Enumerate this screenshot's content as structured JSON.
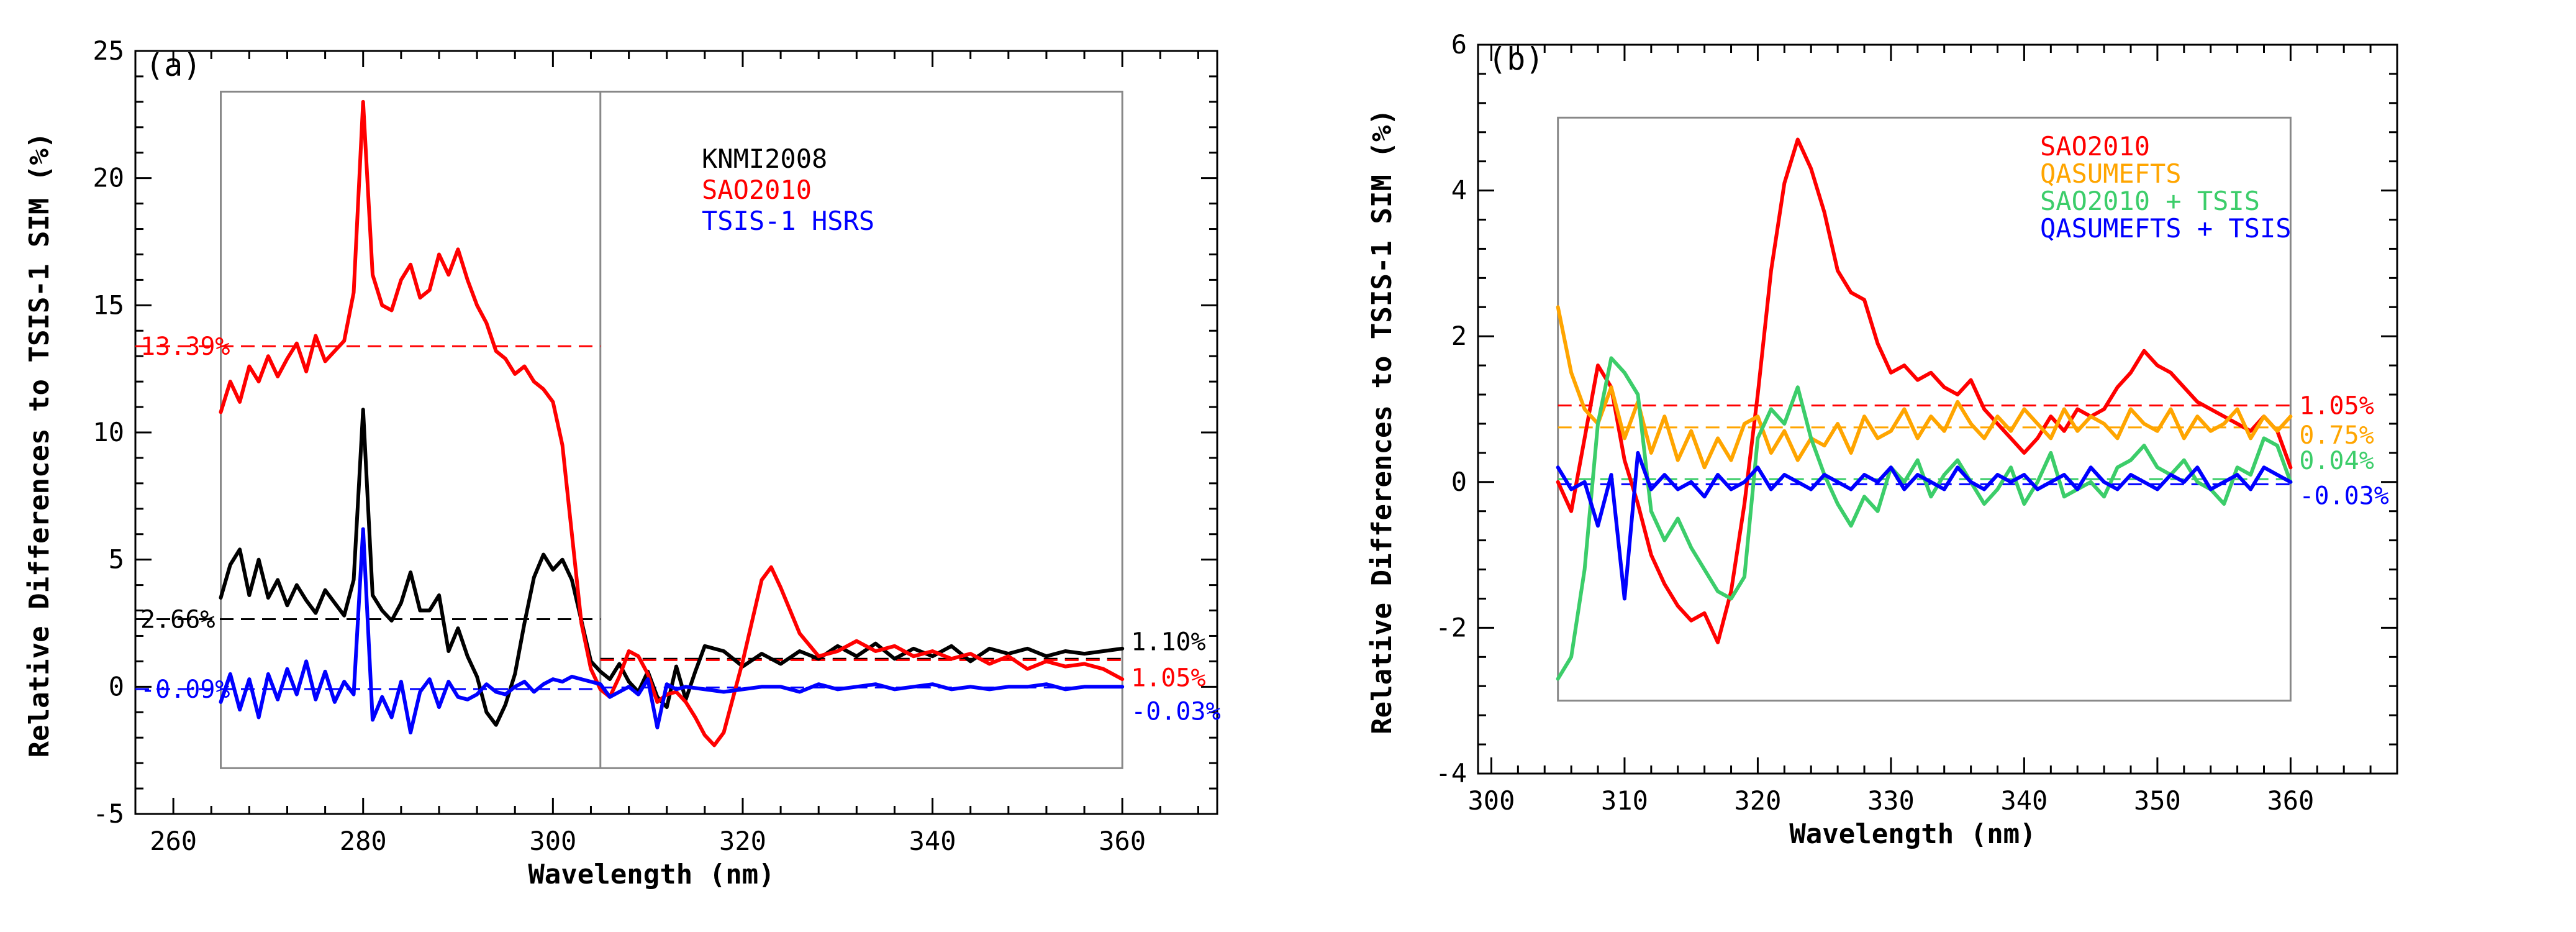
{
  "figure": "Two-panel spectral comparison of relative differences to TSIS-1 SIM",
  "chart_data": [
    {
      "type": "line",
      "panel_label": "(a)",
      "xlabel": "Wavelength (nm)",
      "ylabel": "Relative Differences to TSIS-1 SIM (%)",
      "xlim": [
        256,
        370
      ],
      "ylim": [
        -5,
        25
      ],
      "xticks": [
        260,
        280,
        300,
        320,
        340,
        360
      ],
      "yticks": [
        -5,
        0,
        5,
        10,
        15,
        20,
        25
      ],
      "grid": false,
      "legend_position": "top-center",
      "series": [
        {
          "name": "KNMI2008",
          "color": "#000000",
          "x": [
            265,
            266,
            267,
            268,
            269,
            270,
            271,
            272,
            273,
            274,
            275,
            276,
            277,
            278,
            279,
            280,
            281,
            282,
            283,
            284,
            285,
            286,
            287,
            288,
            289,
            290,
            291,
            292,
            293,
            294,
            295,
            296,
            297,
            298,
            299,
            300,
            301,
            302,
            303,
            304,
            305,
            306,
            307,
            308,
            309,
            310,
            311,
            312,
            313,
            314,
            315,
            316,
            318,
            320,
            322,
            324,
            326,
            328,
            330,
            332,
            334,
            336,
            338,
            340,
            342,
            344,
            346,
            348,
            350,
            352,
            354,
            356,
            358,
            360
          ],
          "y": [
            3.5,
            4.8,
            5.4,
            3.6,
            5.0,
            3.5,
            4.2,
            3.2,
            4.0,
            3.4,
            2.9,
            3.8,
            3.3,
            2.8,
            4.2,
            10.9,
            3.6,
            3.0,
            2.6,
            3.3,
            4.5,
            3.0,
            3.0,
            3.6,
            1.4,
            2.3,
            1.2,
            0.4,
            -1.0,
            -1.5,
            -0.7,
            0.5,
            2.5,
            4.3,
            5.2,
            4.6,
            5.0,
            4.2,
            2.6,
            1.0,
            0.6,
            0.3,
            0.9,
            0.2,
            -0.2,
            0.6,
            -0.4,
            -0.8,
            0.8,
            -0.5,
            0.6,
            1.6,
            1.4,
            0.8,
            1.3,
            0.9,
            1.4,
            1.1,
            1.6,
            1.2,
            1.7,
            1.1,
            1.5,
            1.2,
            1.6,
            1.0,
            1.5,
            1.3,
            1.5,
            1.2,
            1.4,
            1.3,
            1.4,
            1.5
          ]
        },
        {
          "name": "SAO2010",
          "color": "#ff0000",
          "x": [
            265,
            266,
            267,
            268,
            269,
            270,
            271,
            272,
            273,
            274,
            275,
            276,
            277,
            278,
            279,
            280,
            281,
            282,
            283,
            284,
            285,
            286,
            287,
            288,
            289,
            290,
            291,
            292,
            293,
            294,
            295,
            296,
            297,
            298,
            299,
            300,
            301,
            302,
            303,
            304,
            305,
            306,
            307,
            308,
            309,
            310,
            311,
            312,
            313,
            314,
            315,
            316,
            317,
            318,
            320,
            322,
            323,
            324,
            326,
            328,
            330,
            332,
            334,
            336,
            338,
            340,
            342,
            344,
            346,
            348,
            350,
            352,
            354,
            356,
            358,
            360
          ],
          "y": [
            10.8,
            12.0,
            11.2,
            12.6,
            12.0,
            13.0,
            12.2,
            12.9,
            13.5,
            12.4,
            13.8,
            12.8,
            13.2,
            13.6,
            15.5,
            23.0,
            16.2,
            15.0,
            14.8,
            16.0,
            16.6,
            15.3,
            15.6,
            17.0,
            16.2,
            17.2,
            16.0,
            15.0,
            14.3,
            13.2,
            12.9,
            12.3,
            12.6,
            12.0,
            11.7,
            11.2,
            9.5,
            6.0,
            2.5,
            0.7,
            -0.1,
            -0.4,
            0.4,
            1.4,
            1.2,
            0.5,
            -0.6,
            -0.3,
            -0.2,
            -0.6,
            -1.2,
            -1.9,
            -2.3,
            -1.8,
            1.0,
            4.2,
            4.7,
            3.9,
            2.1,
            1.2,
            1.4,
            1.8,
            1.4,
            1.6,
            1.2,
            1.4,
            1.1,
            1.3,
            0.9,
            1.2,
            0.7,
            1.0,
            0.8,
            0.9,
            0.7,
            0.3
          ]
        },
        {
          "name": "TSIS-1 HSRS",
          "color": "#0000ff",
          "x": [
            265,
            266,
            267,
            268,
            269,
            270,
            271,
            272,
            273,
            274,
            275,
            276,
            277,
            278,
            279,
            280,
            281,
            282,
            283,
            284,
            285,
            286,
            287,
            288,
            289,
            290,
            291,
            292,
            293,
            294,
            295,
            296,
            297,
            298,
            299,
            300,
            301,
            302,
            303,
            304,
            305,
            306,
            307,
            308,
            309,
            310,
            311,
            312,
            313,
            314,
            316,
            318,
            320,
            322,
            324,
            326,
            328,
            330,
            332,
            334,
            336,
            338,
            340,
            342,
            344,
            346,
            348,
            350,
            352,
            354,
            356,
            358,
            360
          ],
          "y": [
            -0.6,
            0.5,
            -0.9,
            0.3,
            -1.2,
            0.5,
            -0.5,
            0.7,
            -0.3,
            1.0,
            -0.5,
            0.6,
            -0.6,
            0.2,
            -0.3,
            6.2,
            -1.3,
            -0.4,
            -1.2,
            0.2,
            -1.8,
            -0.2,
            0.3,
            -0.8,
            0.2,
            -0.4,
            -0.5,
            -0.3,
            0.1,
            -0.2,
            -0.3,
            0.0,
            0.2,
            -0.2,
            0.1,
            0.3,
            0.2,
            0.4,
            0.3,
            0.2,
            0.1,
            -0.4,
            -0.2,
            0.0,
            -0.3,
            0.3,
            -1.6,
            0.1,
            -0.1,
            0.0,
            -0.1,
            -0.2,
            -0.1,
            0.0,
            0.0,
            -0.2,
            0.1,
            -0.1,
            0.0,
            0.1,
            -0.1,
            0.0,
            0.1,
            -0.1,
            0.0,
            -0.1,
            0.0,
            0.0,
            0.1,
            -0.1,
            0.0,
            0.0,
            0.0
          ]
        }
      ],
      "reference_lines": [
        {
          "label": "13.39%",
          "value": 13.39,
          "color": "#ff0000",
          "x_from": 256,
          "x_to": 305,
          "label_side": "left"
        },
        {
          "label": "2.66%",
          "value": 2.66,
          "color": "#000000",
          "x_from": 256,
          "x_to": 305,
          "label_side": "left"
        },
        {
          "label": "-0.09%",
          "value": -0.09,
          "color": "#0000ff",
          "x_from": 256,
          "x_to": 305,
          "label_side": "left"
        },
        {
          "label": "1.10%",
          "value": 1.1,
          "color": "#000000",
          "x_from": 305,
          "x_to": 360,
          "label_side": "right"
        },
        {
          "label": "1.05%",
          "value": 1.05,
          "color": "#ff0000",
          "x_from": 305,
          "x_to": 360,
          "label_side": "right"
        },
        {
          "label": "-0.03%",
          "value": -0.03,
          "color": "#0000ff",
          "x_from": 305,
          "x_to": 360,
          "label_side": "right"
        }
      ],
      "divider_x": 305,
      "inner_box": {
        "x": [
          265,
          360
        ],
        "y": [
          -3.2,
          23.4
        ]
      }
    },
    {
      "type": "line",
      "panel_label": "(b)",
      "xlabel": "Wavelength (nm)",
      "ylabel": "Relative Differences to TSIS-1 SIM (%)",
      "xlim": [
        299,
        368
      ],
      "ylim": [
        -4,
        6
      ],
      "xticks": [
        300,
        310,
        320,
        330,
        340,
        350,
        360
      ],
      "yticks": [
        -4,
        -2,
        0,
        2,
        4,
        6
      ],
      "grid": false,
      "legend_position": "top-center",
      "series": [
        {
          "name": "SAO2010",
          "color": "#ff0000",
          "x": [
            305,
            306,
            307,
            308,
            309,
            310,
            311,
            312,
            313,
            314,
            315,
            316,
            317,
            318,
            319,
            320,
            321,
            322,
            323,
            324,
            325,
            326,
            327,
            328,
            329,
            330,
            331,
            332,
            333,
            334,
            335,
            336,
            337,
            338,
            339,
            340,
            341,
            342,
            343,
            344,
            345,
            346,
            347,
            348,
            349,
            350,
            351,
            352,
            353,
            354,
            355,
            356,
            357,
            358,
            359,
            360
          ],
          "y": [
            0.0,
            -0.4,
            0.6,
            1.6,
            1.3,
            0.3,
            -0.3,
            -1.0,
            -1.4,
            -1.7,
            -1.9,
            -1.8,
            -2.2,
            -1.5,
            -0.3,
            1.2,
            2.9,
            4.1,
            4.7,
            4.3,
            3.7,
            2.9,
            2.6,
            2.5,
            1.9,
            1.5,
            1.6,
            1.4,
            1.5,
            1.3,
            1.2,
            1.4,
            1.0,
            0.8,
            0.6,
            0.4,
            0.6,
            0.9,
            0.7,
            1.0,
            0.9,
            1.0,
            1.3,
            1.5,
            1.8,
            1.6,
            1.5,
            1.3,
            1.1,
            1.0,
            0.9,
            0.8,
            0.7,
            0.9,
            0.7,
            0.2
          ]
        },
        {
          "name": "QASUMEFTS",
          "color": "#ffa500",
          "x": [
            305,
            306,
            307,
            308,
            309,
            310,
            311,
            312,
            313,
            314,
            315,
            316,
            317,
            318,
            319,
            320,
            321,
            322,
            323,
            324,
            325,
            326,
            327,
            328,
            329,
            330,
            331,
            332,
            333,
            334,
            335,
            336,
            337,
            338,
            339,
            340,
            341,
            342,
            343,
            344,
            345,
            346,
            347,
            348,
            349,
            350,
            351,
            352,
            353,
            354,
            355,
            356,
            357,
            358,
            359,
            360
          ],
          "y": [
            2.4,
            1.5,
            1.0,
            0.8,
            1.3,
            0.6,
            1.1,
            0.4,
            0.9,
            0.3,
            0.7,
            0.2,
            0.6,
            0.3,
            0.8,
            0.9,
            0.4,
            0.7,
            0.3,
            0.6,
            0.5,
            0.8,
            0.4,
            0.9,
            0.6,
            0.7,
            1.0,
            0.6,
            0.9,
            0.7,
            1.1,
            0.8,
            0.6,
            0.9,
            0.7,
            1.0,
            0.8,
            0.6,
            1.0,
            0.7,
            0.9,
            0.8,
            0.6,
            1.0,
            0.8,
            0.7,
            1.0,
            0.6,
            0.9,
            0.7,
            0.8,
            1.0,
            0.6,
            0.9,
            0.7,
            0.9
          ]
        },
        {
          "name": "SAO2010 + TSIS",
          "color": "#3ccd6a",
          "x": [
            305,
            306,
            307,
            308,
            309,
            310,
            311,
            312,
            313,
            314,
            315,
            316,
            317,
            318,
            319,
            320,
            321,
            322,
            323,
            324,
            325,
            326,
            327,
            328,
            329,
            330,
            331,
            332,
            333,
            334,
            335,
            336,
            337,
            338,
            339,
            340,
            341,
            342,
            343,
            344,
            345,
            346,
            347,
            348,
            349,
            350,
            351,
            352,
            353,
            354,
            355,
            356,
            357,
            358,
            359,
            360
          ],
          "y": [
            -2.7,
            -2.4,
            -1.2,
            0.8,
            1.7,
            1.5,
            1.2,
            -0.4,
            -0.8,
            -0.5,
            -0.9,
            -1.2,
            -1.5,
            -1.6,
            -1.3,
            0.6,
            1.0,
            0.8,
            1.3,
            0.6,
            0.1,
            -0.3,
            -0.6,
            -0.2,
            -0.4,
            0.2,
            0.0,
            0.3,
            -0.2,
            0.1,
            0.3,
            0.0,
            -0.3,
            -0.1,
            0.2,
            -0.3,
            0.0,
            0.4,
            -0.2,
            -0.1,
            0.0,
            -0.2,
            0.2,
            0.3,
            0.5,
            0.2,
            0.1,
            0.3,
            0.0,
            -0.1,
            -0.3,
            0.2,
            0.1,
            0.6,
            0.5,
            0.0
          ]
        },
        {
          "name": "QASUMEFTS + TSIS",
          "color": "#0000ff",
          "x": [
            305,
            306,
            307,
            308,
            309,
            310,
            311,
            312,
            313,
            314,
            315,
            316,
            317,
            318,
            319,
            320,
            321,
            322,
            323,
            324,
            325,
            326,
            327,
            328,
            329,
            330,
            331,
            332,
            333,
            334,
            335,
            336,
            337,
            338,
            339,
            340,
            341,
            342,
            343,
            344,
            345,
            346,
            347,
            348,
            349,
            350,
            351,
            352,
            353,
            354,
            355,
            356,
            357,
            358,
            359,
            360
          ],
          "y": [
            0.2,
            -0.1,
            0.0,
            -0.6,
            0.1,
            -1.6,
            0.4,
            -0.1,
            0.1,
            -0.1,
            0.0,
            -0.2,
            0.1,
            -0.1,
            0.0,
            0.2,
            -0.1,
            0.1,
            0.0,
            -0.1,
            0.1,
            0.0,
            -0.1,
            0.1,
            0.0,
            0.2,
            -0.1,
            0.1,
            0.0,
            -0.1,
            0.2,
            0.0,
            -0.1,
            0.1,
            0.0,
            0.1,
            -0.1,
            0.0,
            0.1,
            -0.1,
            0.2,
            0.0,
            -0.1,
            0.1,
            0.0,
            -0.1,
            0.1,
            0.0,
            0.2,
            -0.1,
            0.0,
            0.1,
            -0.1,
            0.2,
            0.1,
            0.0
          ]
        }
      ],
      "reference_lines": [
        {
          "label": "1.05%",
          "value": 1.05,
          "color": "#ff0000",
          "x_from": 305,
          "x_to": 360,
          "label_side": "right"
        },
        {
          "label": "0.75%",
          "value": 0.75,
          "color": "#ffa500",
          "x_from": 305,
          "x_to": 360,
          "label_side": "right"
        },
        {
          "label": "0.04%",
          "value": 0.04,
          "color": "#3ccd6a",
          "x_from": 305,
          "x_to": 360,
          "label_side": "right"
        },
        {
          "label": "-0.03%",
          "value": -0.03,
          "color": "#0000ff",
          "x_from": 305,
          "x_to": 360,
          "label_side": "right"
        }
      ],
      "inner_box": {
        "x": [
          305,
          360
        ],
        "y": [
          -3.0,
          5.0
        ]
      }
    }
  ]
}
